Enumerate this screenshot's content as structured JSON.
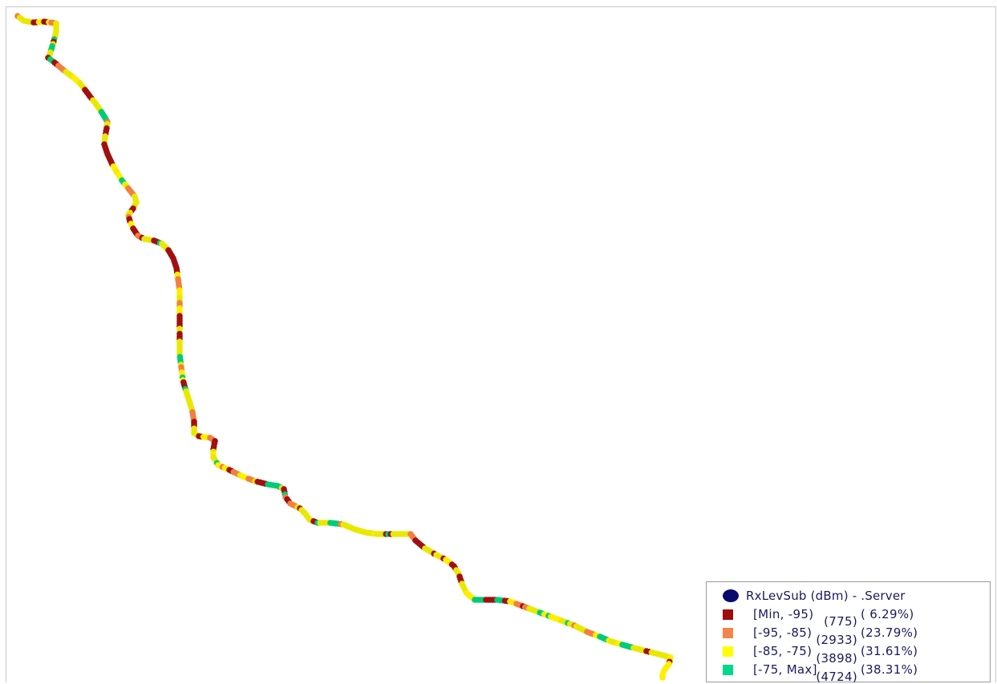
{
  "map": {
    "route_colors": [
      "#e8e800",
      "#e8e800",
      "#a01010",
      "#f08040",
      "#ffee00",
      "#00cc77"
    ]
  },
  "legend": {
    "title": "RxLevSub (dBm) - .Server",
    "title_icon": "filled-circle-icon",
    "title_icon_color": "#0a0a6e",
    "items": [
      {
        "range": "[Min, -95)",
        "count": "(775)",
        "percent": "( 6.29%)",
        "color": "#a00c0c"
      },
      {
        "range": "[-95, -85)",
        "count": "(2933)",
        "percent": "(23.79%)",
        "color": "#f5844a"
      },
      {
        "range": "[-85, -75)",
        "count": "(3898)",
        "percent": "(31.61%)",
        "color": "#ffff00"
      },
      {
        "range": "[-75, Max]",
        "count": "(4724)",
        "percent": "(38.31%)",
        "color": "#00d98a"
      }
    ]
  }
}
